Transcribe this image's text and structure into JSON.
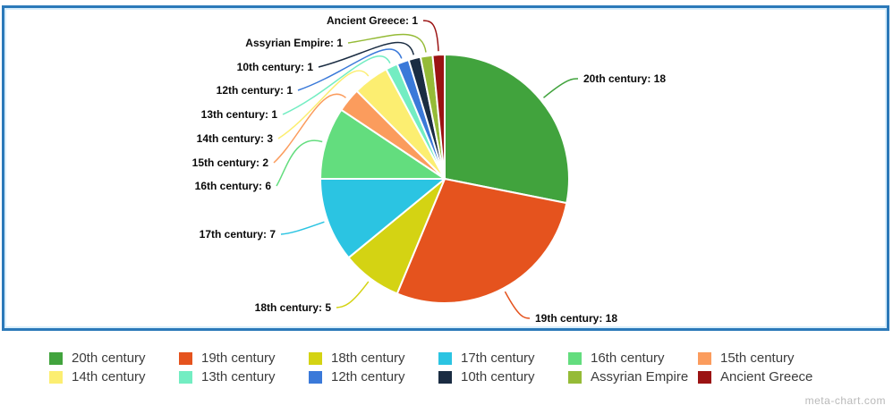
{
  "watermark": "meta-chart.com",
  "chart_data": {
    "type": "pie",
    "title": "",
    "total": 64,
    "order": "clockwise-from-top",
    "legend_position": "bottom",
    "legend_rows": 2,
    "legend_columns": 6,
    "border_color": "#2b79b9",
    "slices": [
      {
        "name": "20th century",
        "value": 18,
        "color": "#41A33D",
        "callout": "20th century: 18"
      },
      {
        "name": "19th century",
        "value": 18,
        "color": "#E5531E",
        "callout": "19th century: 18"
      },
      {
        "name": "18th century",
        "value": 5,
        "color": "#D4D313",
        "callout": "18th century: 5"
      },
      {
        "name": "17th century",
        "value": 7,
        "color": "#2BC4E2",
        "callout": "17th century: 7"
      },
      {
        "name": "16th century",
        "value": 6,
        "color": "#63DD7E",
        "callout": "16th century: 6"
      },
      {
        "name": "15th century",
        "value": 2,
        "color": "#FB9C5D",
        "callout": "15th century: 2"
      },
      {
        "name": "14th century",
        "value": 3,
        "color": "#FCEE71",
        "callout": "14th century: 3"
      },
      {
        "name": "13th century",
        "value": 1,
        "color": "#73EDC2",
        "callout": "13th century: 1"
      },
      {
        "name": "12th century",
        "value": 1,
        "color": "#3A79D9",
        "callout": "12th century: 1"
      },
      {
        "name": "10th century",
        "value": 1,
        "color": "#1A2C42",
        "callout": "10th century: 1"
      },
      {
        "name": "Assyrian Empire",
        "value": 1,
        "color": "#95BB37",
        "callout": "Assyrian Empire: 1"
      },
      {
        "name": "Ancient Greece",
        "value": 1,
        "color": "#9B1313",
        "callout": "Ancient Greece: 1"
      }
    ]
  }
}
